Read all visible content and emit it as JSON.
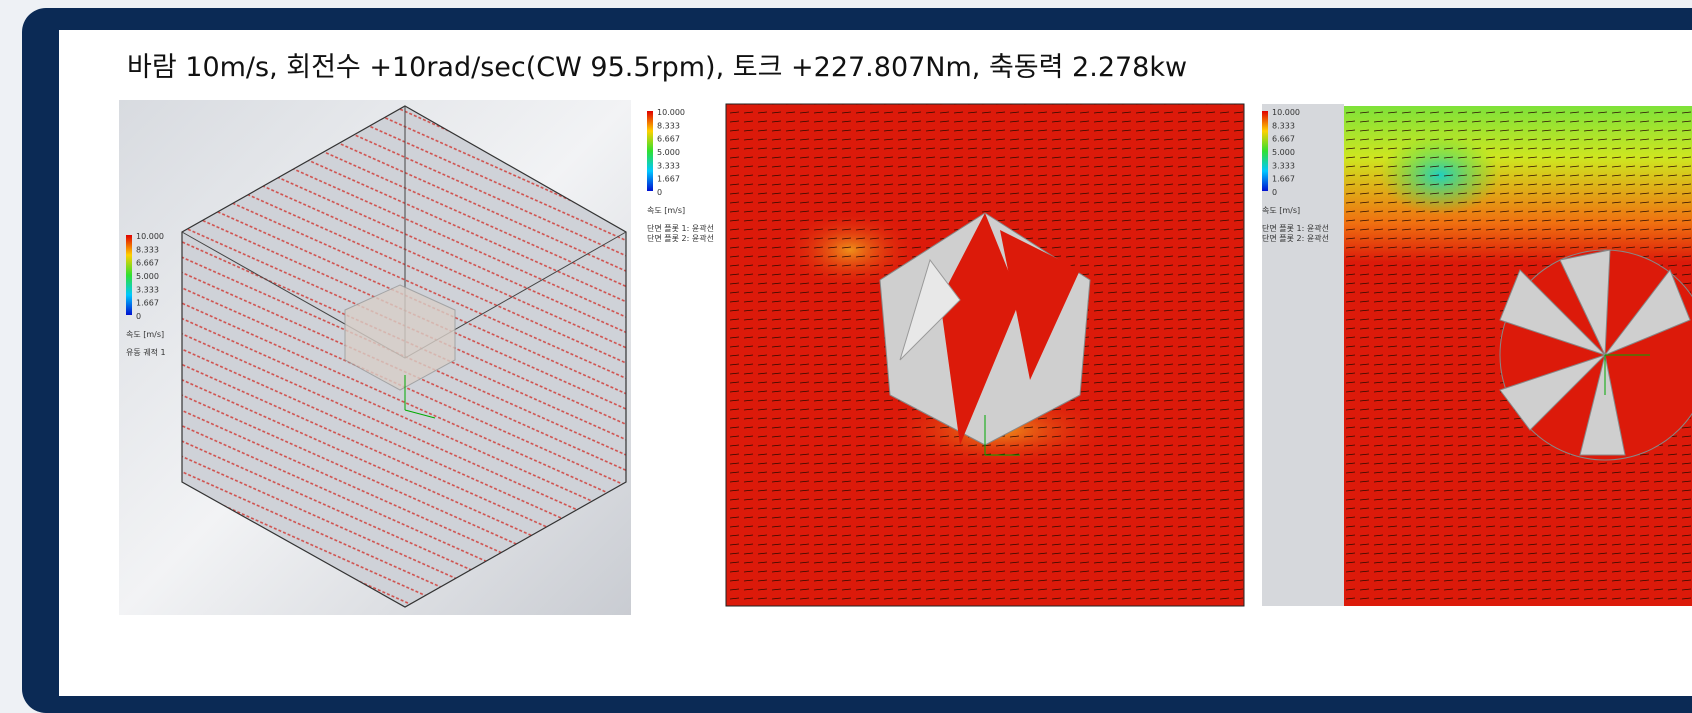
{
  "header": {
    "title": "바람 10m/s, 회전수 +10rad/sec(CW 95.5rpm), 토크 +227.807Nm, 축동력 2.278kw"
  },
  "panels": [
    {
      "legend": {
        "ticks": [
          "10.000",
          "8.333",
          "6.667",
          "5.000",
          "3.333",
          "1.667",
          "0"
        ],
        "unit": "속도 [m/s]",
        "notes": [
          "유동 궤적 1"
        ]
      }
    },
    {
      "legend": {
        "ticks": [
          "10.000",
          "8.333",
          "6.667",
          "5.000",
          "3.333",
          "1.667",
          "0"
        ],
        "unit": "속도 [m/s]",
        "notes": [
          "단면 플롯 1: 윤곽선",
          "단면 플롯 2: 윤곽선"
        ]
      }
    },
    {
      "legend": {
        "ticks": [
          "10.000",
          "8.333",
          "6.667",
          "5.000",
          "3.333",
          "1.667",
          "0"
        ],
        "unit": "속도 [m/s]",
        "notes": [
          "단면 플롯 1: 윤곽선",
          "단면 플롯 2: 윤곽선"
        ]
      }
    }
  ]
}
